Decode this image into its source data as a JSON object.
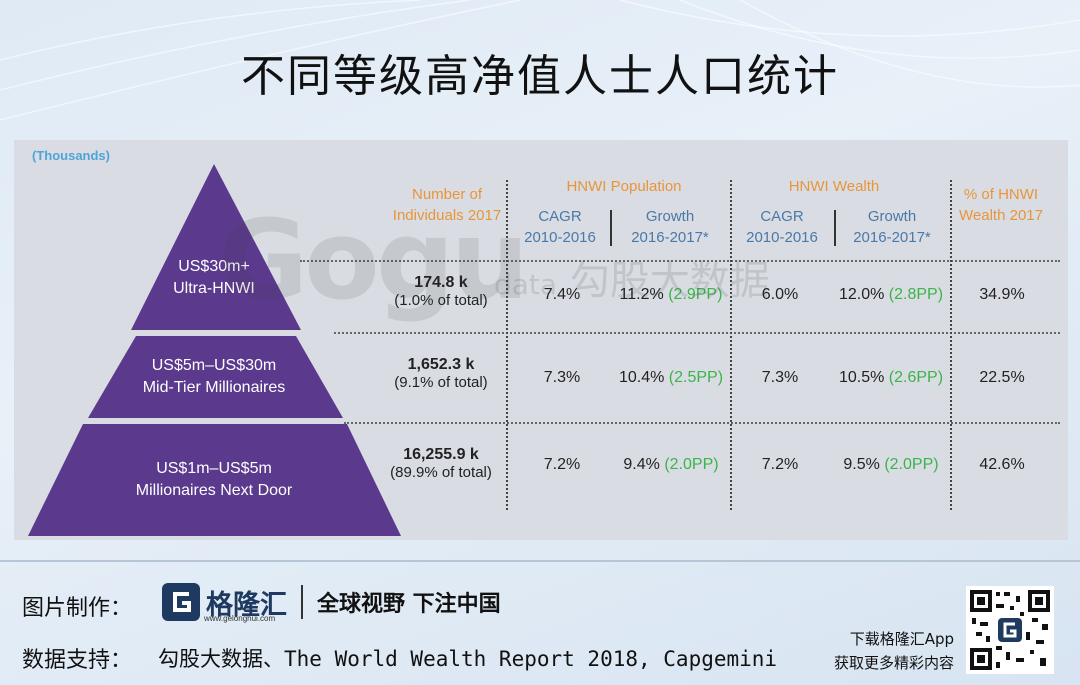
{
  "title": "不同等级高净值人士人口统计",
  "chart_data": {
    "type": "table",
    "unit_note": "(Thousands)",
    "headers": {
      "individuals": "Number of Individuals 2017",
      "population_group": "HNWI Population",
      "wealth_group": "HNWI Wealth",
      "cagr": "CAGR",
      "cagr_period": "2010-2016",
      "growth": "Growth",
      "growth_period": "2016-2017*",
      "share": "% of HNWI Wealth 2017"
    },
    "rows": [
      {
        "tier": "US$30m+",
        "tier_name": "Ultra-HNWI",
        "individuals": "174.8 k",
        "share_of_total": "(1.0% of total)",
        "pop_cagr": "7.4%",
        "pop_growth": "11.2%",
        "pop_growth_pp": "(2.9PP)",
        "wealth_cagr": "6.0%",
        "wealth_growth": "12.0%",
        "wealth_growth_pp": "(2.8PP)",
        "wealth_share": "34.9%"
      },
      {
        "tier": "US$5m–US$30m",
        "tier_name": "Mid-Tier Millionaires",
        "individuals": "1,652.3 k",
        "share_of_total": "(9.1% of total)",
        "pop_cagr": "7.3%",
        "pop_growth": "10.4%",
        "pop_growth_pp": "(2.5PP)",
        "wealth_cagr": "7.3%",
        "wealth_growth": "10.5%",
        "wealth_growth_pp": "(2.6PP)",
        "wealth_share": "22.5%"
      },
      {
        "tier": "US$1m–US$5m",
        "tier_name": "Millionaires Next Door",
        "individuals": "16,255.9 k",
        "share_of_total": "(89.9% of total)",
        "pop_cagr": "7.2%",
        "pop_growth": "9.4%",
        "pop_growth_pp": "(2.0PP)",
        "wealth_cagr": "7.2%",
        "wealth_growth": "9.5%",
        "wealth_growth_pp": "(2.0PP)",
        "wealth_share": "42.6%"
      }
    ]
  },
  "watermark": {
    "logo": "Gogu",
    "sub": "data",
    "cn": "勾股大数据"
  },
  "footer": {
    "made_by_label": "图片制作：",
    "brand": "格隆汇",
    "brand_url": "www.gelonghui.com",
    "slogan": "全球视野 下注中国",
    "data_support_label": "数据支持：",
    "source": "勾股大数据、The World Wealth Report 2018, Capgemini",
    "app_line1": "下载格隆汇App",
    "app_line2": "获取更多精彩内容"
  },
  "colors": {
    "pyramid": "#5b3a8e",
    "header_orange": "#e8953a",
    "growth_green": "#3bb44a"
  }
}
